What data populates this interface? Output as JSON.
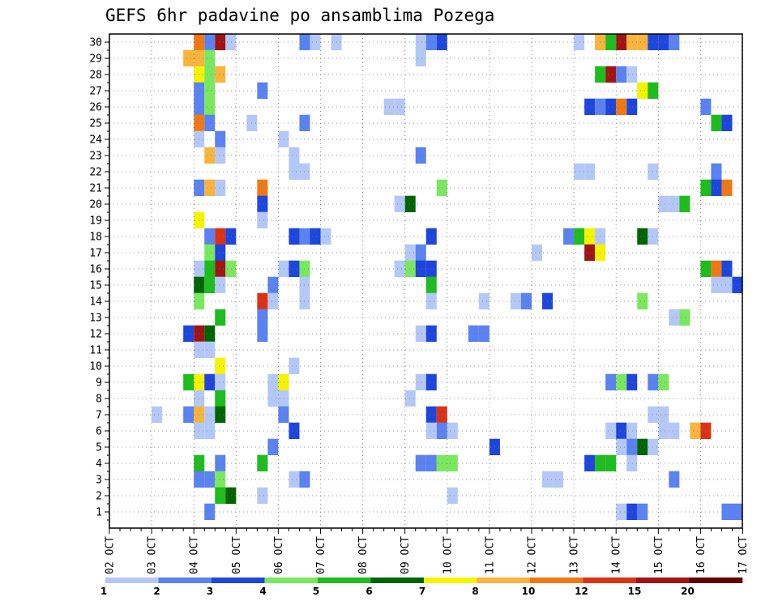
{
  "chart_data": {
    "type": "heatmap",
    "title": "GEFS 6hr padavine po ansamblima Pozega",
    "x_labels": [
      "02 OCT",
      "03 OCT",
      "04 OCT",
      "05 OCT",
      "06 OCT",
      "07 OCT",
      "08 OCT",
      "09 OCT",
      "10 OCT",
      "11 OCT",
      "12 OCT",
      "13 OCT",
      "14 OCT",
      "15 OCT",
      "16 OCT",
      "17 OCT"
    ],
    "y_labels": [
      "1",
      "2",
      "3",
      "4",
      "5",
      "6",
      "7",
      "8",
      "9",
      "10",
      "11",
      "12",
      "13",
      "14",
      "15",
      "16",
      "17",
      "18",
      "19",
      "20",
      "21",
      "22",
      "23",
      "24",
      "25",
      "26",
      "27",
      "28",
      "29",
      "30"
    ],
    "steps_per_day": 4,
    "grid": true,
    "colorbar": {
      "labels": [
        "1",
        "2",
        "3",
        "4",
        "5",
        "6",
        "7",
        "8",
        "10",
        "12",
        "15",
        "20"
      ],
      "colors": [
        "#b4c8f8",
        "#5a82f0",
        "#1e46dc",
        "#7ae85e",
        "#1ebc1e",
        "#006400",
        "#f4f400",
        "#f8b43c",
        "#f07814",
        "#dc3214",
        "#a01414",
        "#640000"
      ]
    },
    "cells": [
      [
        8,
        30,
        "#f07814"
      ],
      [
        9,
        30,
        "#5a82f0"
      ],
      [
        10,
        30,
        "#a01414"
      ],
      [
        11,
        30,
        "#b4c8f8"
      ],
      [
        18,
        30,
        "#5a82f0"
      ],
      [
        19,
        30,
        "#b4c8f8"
      ],
      [
        21,
        30,
        "#b4c8f8"
      ],
      [
        29,
        30,
        "#b4c8f8"
      ],
      [
        30,
        30,
        "#5a82f0"
      ],
      [
        31,
        30,
        "#1e46dc"
      ],
      [
        44,
        30,
        "#b4c8f8"
      ],
      [
        46,
        30,
        "#f8b43c"
      ],
      [
        47,
        30,
        "#1ebc1e"
      ],
      [
        48,
        30,
        "#a01414"
      ],
      [
        49,
        30,
        "#f8b43c"
      ],
      [
        50,
        30,
        "#f8b43c"
      ],
      [
        51,
        30,
        "#1e46dc"
      ],
      [
        52,
        30,
        "#1e46dc"
      ],
      [
        53,
        30,
        "#5a82f0"
      ],
      [
        7,
        29,
        "#f8b43c"
      ],
      [
        8,
        29,
        "#f8b43c"
      ],
      [
        9,
        29,
        "#7ae85e"
      ],
      [
        29,
        29,
        "#b4c8f8"
      ],
      [
        8,
        28,
        "#f4f400"
      ],
      [
        9,
        28,
        "#7ae85e"
      ],
      [
        10,
        28,
        "#f8b43c"
      ],
      [
        46,
        28,
        "#1ebc1e"
      ],
      [
        47,
        28,
        "#a01414"
      ],
      [
        48,
        28,
        "#5a82f0"
      ],
      [
        49,
        28,
        "#b4c8f8"
      ],
      [
        8,
        27,
        "#5a82f0"
      ],
      [
        9,
        27,
        "#7ae85e"
      ],
      [
        14,
        27,
        "#5a82f0"
      ],
      [
        50,
        27,
        "#f4f400"
      ],
      [
        51,
        27,
        "#1ebc1e"
      ],
      [
        8,
        26,
        "#5a82f0"
      ],
      [
        9,
        26,
        "#7ae85e"
      ],
      [
        26,
        26,
        "#b4c8f8"
      ],
      [
        27,
        26,
        "#b4c8f8"
      ],
      [
        45,
        26,
        "#1e46dc"
      ],
      [
        46,
        26,
        "#5a82f0"
      ],
      [
        47,
        26,
        "#1e46dc"
      ],
      [
        48,
        26,
        "#f07814"
      ],
      [
        49,
        26,
        "#1e46dc"
      ],
      [
        56,
        26,
        "#5a82f0"
      ],
      [
        8,
        25,
        "#f07814"
      ],
      [
        9,
        25,
        "#5a82f0"
      ],
      [
        13,
        25,
        "#b4c8f8"
      ],
      [
        18,
        25,
        "#5a82f0"
      ],
      [
        57,
        25,
        "#1ebc1e"
      ],
      [
        58,
        25,
        "#1e46dc"
      ],
      [
        8,
        24,
        "#b4c8f8"
      ],
      [
        10,
        24,
        "#5a82f0"
      ],
      [
        16,
        24,
        "#b4c8f8"
      ],
      [
        9,
        23,
        "#f8b43c"
      ],
      [
        10,
        23,
        "#b4c8f8"
      ],
      [
        17,
        23,
        "#b4c8f8"
      ],
      [
        29,
        23,
        "#5a82f0"
      ],
      [
        17,
        22,
        "#b4c8f8"
      ],
      [
        18,
        22,
        "#b4c8f8"
      ],
      [
        44,
        22,
        "#b4c8f8"
      ],
      [
        45,
        22,
        "#b4c8f8"
      ],
      [
        51,
        22,
        "#b4c8f8"
      ],
      [
        57,
        22,
        "#5a82f0"
      ],
      [
        8,
        21,
        "#5a82f0"
      ],
      [
        9,
        21,
        "#f8b43c"
      ],
      [
        10,
        21,
        "#b4c8f8"
      ],
      [
        14,
        21,
        "#f07814"
      ],
      [
        31,
        21,
        "#7ae85e"
      ],
      [
        56,
        21,
        "#1ebc1e"
      ],
      [
        57,
        21,
        "#1e46dc"
      ],
      [
        58,
        21,
        "#f07814"
      ],
      [
        14,
        20,
        "#1e46dc"
      ],
      [
        27,
        20,
        "#b4c8f8"
      ],
      [
        28,
        20,
        "#006400"
      ],
      [
        52,
        20,
        "#b4c8f8"
      ],
      [
        53,
        20,
        "#b4c8f8"
      ],
      [
        54,
        20,
        "#1ebc1e"
      ],
      [
        8,
        19,
        "#f4f400"
      ],
      [
        14,
        19,
        "#b4c8f8"
      ],
      [
        9,
        18,
        "#5a82f0"
      ],
      [
        10,
        18,
        "#dc3214"
      ],
      [
        11,
        18,
        "#1e46dc"
      ],
      [
        17,
        18,
        "#1e46dc"
      ],
      [
        18,
        18,
        "#5a82f0"
      ],
      [
        19,
        18,
        "#1e46dc"
      ],
      [
        20,
        18,
        "#b4c8f8"
      ],
      [
        30,
        18,
        "#1e46dc"
      ],
      [
        43,
        18,
        "#5a82f0"
      ],
      [
        44,
        18,
        "#1ebc1e"
      ],
      [
        45,
        18,
        "#f4f400"
      ],
      [
        46,
        18,
        "#b4c8f8"
      ],
      [
        50,
        18,
        "#006400"
      ],
      [
        51,
        18,
        "#b4c8f8"
      ],
      [
        9,
        17,
        "#7ae85e"
      ],
      [
        10,
        17,
        "#1e46dc"
      ],
      [
        28,
        17,
        "#b4c8f8"
      ],
      [
        29,
        17,
        "#5a82f0"
      ],
      [
        40,
        17,
        "#b4c8f8"
      ],
      [
        45,
        17,
        "#a01414"
      ],
      [
        46,
        17,
        "#f4f400"
      ],
      [
        8,
        16,
        "#b4c8f8"
      ],
      [
        9,
        16,
        "#1ebc1e"
      ],
      [
        10,
        16,
        "#a01414"
      ],
      [
        11,
        16,
        "#7ae85e"
      ],
      [
        16,
        16,
        "#b4c8f8"
      ],
      [
        17,
        16,
        "#1e46dc"
      ],
      [
        18,
        16,
        "#7ae85e"
      ],
      [
        27,
        16,
        "#b4c8f8"
      ],
      [
        28,
        16,
        "#7ae85e"
      ],
      [
        29,
        16,
        "#1e46dc"
      ],
      [
        30,
        16,
        "#1e46dc"
      ],
      [
        56,
        16,
        "#1ebc1e"
      ],
      [
        57,
        16,
        "#f07814"
      ],
      [
        58,
        16,
        "#1e46dc"
      ],
      [
        8,
        15,
        "#006400"
      ],
      [
        9,
        15,
        "#1ebc1e"
      ],
      [
        10,
        15,
        "#b4c8f8"
      ],
      [
        15,
        15,
        "#5a82f0"
      ],
      [
        18,
        15,
        "#b4c8f8"
      ],
      [
        30,
        15,
        "#1ebc1e"
      ],
      [
        57,
        15,
        "#b4c8f8"
      ],
      [
        58,
        15,
        "#b4c8f8"
      ],
      [
        59,
        15,
        "#1e46dc"
      ],
      [
        8,
        14,
        "#7ae85e"
      ],
      [
        14,
        14,
        "#dc3214"
      ],
      [
        15,
        14,
        "#b4c8f8"
      ],
      [
        18,
        14,
        "#b4c8f8"
      ],
      [
        30,
        14,
        "#b4c8f8"
      ],
      [
        35,
        14,
        "#b4c8f8"
      ],
      [
        38,
        14,
        "#b4c8f8"
      ],
      [
        39,
        14,
        "#5a82f0"
      ],
      [
        41,
        14,
        "#1e46dc"
      ],
      [
        50,
        14,
        "#7ae85e"
      ],
      [
        10,
        13,
        "#1ebc1e"
      ],
      [
        14,
        13,
        "#5a82f0"
      ],
      [
        53,
        13,
        "#b4c8f8"
      ],
      [
        54,
        13,
        "#7ae85e"
      ],
      [
        7,
        12,
        "#1e46dc"
      ],
      [
        8,
        12,
        "#a01414"
      ],
      [
        9,
        12,
        "#006400"
      ],
      [
        14,
        12,
        "#5a82f0"
      ],
      [
        29,
        12,
        "#b4c8f8"
      ],
      [
        30,
        12,
        "#1e46dc"
      ],
      [
        34,
        12,
        "#5a82f0"
      ],
      [
        35,
        12,
        "#5a82f0"
      ],
      [
        8,
        11,
        "#b4c8f8"
      ],
      [
        9,
        11,
        "#b4c8f8"
      ],
      [
        10,
        10,
        "#f4f400"
      ],
      [
        17,
        10,
        "#b4c8f8"
      ],
      [
        7,
        9,
        "#1ebc1e"
      ],
      [
        8,
        9,
        "#f4f400"
      ],
      [
        9,
        9,
        "#1e46dc"
      ],
      [
        10,
        9,
        "#b4c8f8"
      ],
      [
        15,
        9,
        "#b4c8f8"
      ],
      [
        16,
        9,
        "#f4f400"
      ],
      [
        29,
        9,
        "#b4c8f8"
      ],
      [
        30,
        9,
        "#1e46dc"
      ],
      [
        47,
        9,
        "#5a82f0"
      ],
      [
        48,
        9,
        "#7ae85e"
      ],
      [
        49,
        9,
        "#1e46dc"
      ],
      [
        51,
        9,
        "#5a82f0"
      ],
      [
        52,
        9,
        "#7ae85e"
      ],
      [
        8,
        8,
        "#b4c8f8"
      ],
      [
        10,
        8,
        "#1ebc1e"
      ],
      [
        15,
        8,
        "#b4c8f8"
      ],
      [
        16,
        8,
        "#b4c8f8"
      ],
      [
        28,
        8,
        "#b4c8f8"
      ],
      [
        4,
        7,
        "#b4c8f8"
      ],
      [
        7,
        7,
        "#5a82f0"
      ],
      [
        8,
        7,
        "#f8b43c"
      ],
      [
        9,
        7,
        "#b4c8f8"
      ],
      [
        10,
        7,
        "#006400"
      ],
      [
        16,
        7,
        "#5a82f0"
      ],
      [
        30,
        7,
        "#1e46dc"
      ],
      [
        31,
        7,
        "#dc3214"
      ],
      [
        51,
        7,
        "#b4c8f8"
      ],
      [
        52,
        7,
        "#b4c8f8"
      ],
      [
        8,
        6,
        "#b4c8f8"
      ],
      [
        9,
        6,
        "#b4c8f8"
      ],
      [
        17,
        6,
        "#1e46dc"
      ],
      [
        30,
        6,
        "#b4c8f8"
      ],
      [
        31,
        6,
        "#5a82f0"
      ],
      [
        32,
        6,
        "#b4c8f8"
      ],
      [
        47,
        6,
        "#b4c8f8"
      ],
      [
        48,
        6,
        "#1e46dc"
      ],
      [
        49,
        6,
        "#b4c8f8"
      ],
      [
        52,
        6,
        "#b4c8f8"
      ],
      [
        53,
        6,
        "#b4c8f8"
      ],
      [
        55,
        6,
        "#f8b43c"
      ],
      [
        56,
        6,
        "#dc3214"
      ],
      [
        15,
        5,
        "#5a82f0"
      ],
      [
        36,
        5,
        "#1e46dc"
      ],
      [
        48,
        5,
        "#b4c8f8"
      ],
      [
        49,
        5,
        "#5a82f0"
      ],
      [
        50,
        5,
        "#006400"
      ],
      [
        51,
        5,
        "#b4c8f8"
      ],
      [
        8,
        4,
        "#1ebc1e"
      ],
      [
        10,
        4,
        "#5a82f0"
      ],
      [
        14,
        4,
        "#1ebc1e"
      ],
      [
        29,
        4,
        "#5a82f0"
      ],
      [
        30,
        4,
        "#5a82f0"
      ],
      [
        31,
        4,
        "#7ae85e"
      ],
      [
        32,
        4,
        "#7ae85e"
      ],
      [
        45,
        4,
        "#1e46dc"
      ],
      [
        46,
        4,
        "#1ebc1e"
      ],
      [
        47,
        4,
        "#1ebc1e"
      ],
      [
        49,
        4,
        "#b4c8f8"
      ],
      [
        8,
        3,
        "#5a82f0"
      ],
      [
        9,
        3,
        "#5a82f0"
      ],
      [
        10,
        3,
        "#7ae85e"
      ],
      [
        17,
        3,
        "#b4c8f8"
      ],
      [
        18,
        3,
        "#5a82f0"
      ],
      [
        41,
        3,
        "#b4c8f8"
      ],
      [
        42,
        3,
        "#b4c8f8"
      ],
      [
        53,
        3,
        "#5a82f0"
      ],
      [
        10,
        2,
        "#1ebc1e"
      ],
      [
        11,
        2,
        "#006400"
      ],
      [
        14,
        2,
        "#b4c8f8"
      ],
      [
        32,
        2,
        "#b4c8f8"
      ],
      [
        9,
        1,
        "#5a82f0"
      ],
      [
        48,
        1,
        "#b4c8f8"
      ],
      [
        49,
        1,
        "#1e46dc"
      ],
      [
        50,
        1,
        "#5a82f0"
      ],
      [
        58,
        1,
        "#5a82f0"
      ],
      [
        59,
        1,
        "#5a82f0"
      ]
    ]
  }
}
